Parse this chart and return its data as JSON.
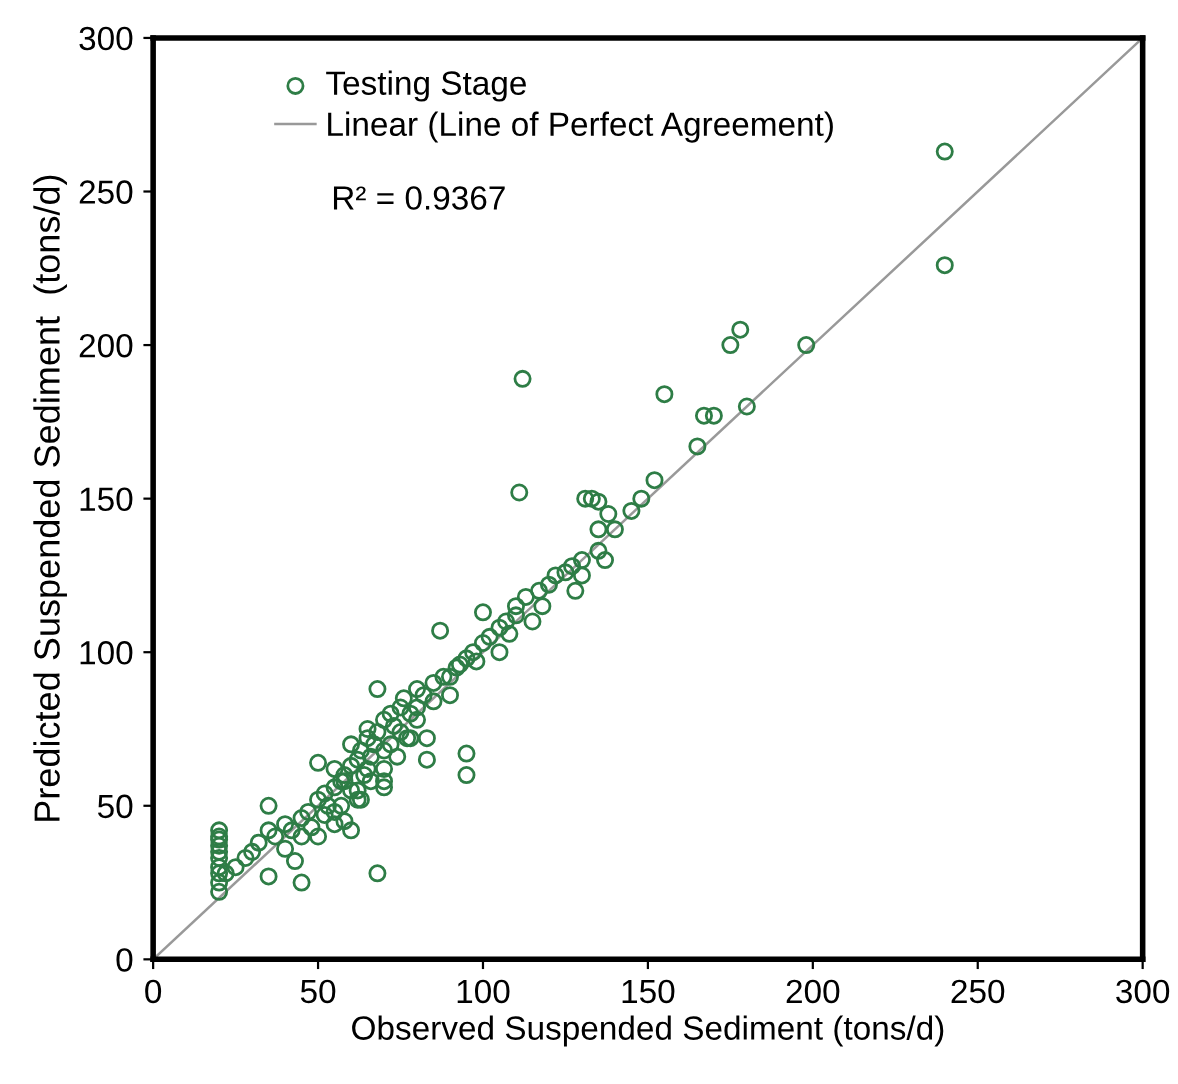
{
  "chart_data": {
    "type": "scatter",
    "xlabel": "Observed Suspended Sediment (tons/d)",
    "ylabel": "Predicted Suspended Sediment  (tons/d)",
    "xlim": [
      0,
      300
    ],
    "ylim": [
      0,
      300
    ],
    "xticks": [
      0,
      50,
      100,
      150,
      200,
      250,
      300
    ],
    "yticks": [
      0,
      50,
      100,
      150,
      200,
      250,
      300
    ],
    "grid": false,
    "legend": "top left",
    "annotations": [
      "R² = 0.9367"
    ],
    "series": [
      {
        "name": "Testing Stage",
        "color": "#2e7d46",
        "marker": "circle",
        "x": [
          20,
          20,
          20,
          20,
          20,
          20,
          20,
          20,
          20,
          20,
          22,
          25,
          28,
          30,
          32,
          35,
          35,
          37,
          40,
          40,
          42,
          45,
          45,
          47,
          48,
          50,
          50,
          52,
          52,
          53,
          55,
          55,
          55,
          57,
          57,
          58,
          58,
          60,
          60,
          60,
          62,
          62,
          63,
          63,
          65,
          65,
          65,
          66,
          67,
          68,
          68,
          70,
          70,
          70,
          72,
          72,
          73,
          75,
          75,
          76,
          77,
          78,
          80,
          80,
          80,
          82,
          83,
          85,
          85,
          87,
          88,
          90,
          90,
          92,
          93,
          95,
          95,
          97,
          98,
          100,
          100,
          102,
          105,
          105,
          107,
          108,
          110,
          110,
          111,
          112,
          113,
          115,
          117,
          118,
          120,
          122,
          125,
          127,
          128,
          130,
          130,
          131,
          133,
          135,
          135,
          135,
          137,
          138,
          140,
          145,
          148,
          152,
          155,
          165,
          167,
          170,
          175,
          178,
          180,
          198,
          240,
          240,
          35,
          43,
          50,
          68,
          70,
          83,
          95,
          45,
          55,
          60,
          58,
          62,
          64,
          66,
          70,
          74,
          78
        ],
        "values": [
          22,
          25,
          28,
          30,
          33,
          35,
          37,
          39,
          40,
          42,
          28,
          30,
          33,
          35,
          38,
          42,
          27,
          40,
          44,
          36,
          42,
          46,
          25,
          48,
          43,
          52,
          40,
          54,
          47,
          50,
          56,
          44,
          62,
          58,
          50,
          60,
          45,
          63,
          55,
          70,
          65,
          55,
          68,
          52,
          72,
          62,
          75,
          66,
          70,
          74,
          28,
          78,
          68,
          62,
          80,
          70,
          76,
          82,
          74,
          85,
          72,
          80,
          88,
          82,
          78,
          86,
          65,
          90,
          84,
          107,
          92,
          92,
          86,
          95,
          96,
          98,
          67,
          100,
          97,
          113,
          103,
          105,
          108,
          100,
          110,
          106,
          112,
          115,
          152,
          189,
          118,
          110,
          120,
          115,
          122,
          125,
          126,
          128,
          120,
          130,
          125,
          150,
          150,
          149,
          133,
          140,
          130,
          145,
          140,
          146,
          150,
          156,
          184,
          167,
          177,
          177,
          200,
          205,
          180,
          200,
          263,
          226,
          50,
          32,
          64,
          88,
          58,
          72,
          60,
          40,
          48,
          42,
          58,
          52,
          60,
          58,
          56,
          66,
          72
        ]
      },
      {
        "name": "Linear (Line of Perfect Agreement)",
        "color": "#999999",
        "type": "line",
        "marker": "none",
        "x": [
          0,
          300
        ],
        "values": [
          0,
          300
        ]
      }
    ]
  }
}
